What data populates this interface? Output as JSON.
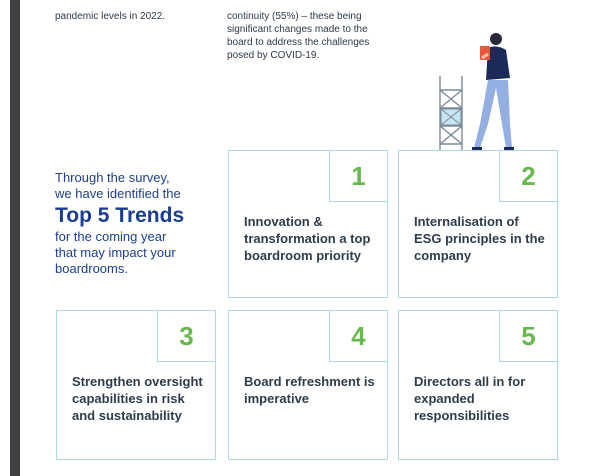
{
  "intro": {
    "left_text": "pandemic levels in 2022.",
    "right_text": "continuity (55%) – these being significant changes made to the board to address the challenges posed by COVID-19."
  },
  "trends": {
    "line1": "Through the survey,",
    "line2": "we have identified the",
    "title": "Top 5 Trends",
    "line3": "for the coming year",
    "line4": "that may impact your",
    "line5": "boardrooms."
  },
  "cards": [
    {
      "number": "1",
      "text": "Innovation & transformation a top boardroom priority"
    },
    {
      "number": "2",
      "text": "Internalisation of ESG principles in the company"
    },
    {
      "number": "3",
      "text": "Strengthen oversight capabilities in risk and sustainability"
    },
    {
      "number": "4",
      "text": "Board refreshment is imperative"
    },
    {
      "number": "5",
      "text": "Directors all in for expanded responsibilities"
    }
  ],
  "colors": {
    "accent_blue": "#1a3c91",
    "number_green": "#67b84f",
    "card_border": "#a9d8e4",
    "side_bar": "#3f4043"
  },
  "icons": {
    "illustration": "person-on-scaffold-reading-document"
  }
}
